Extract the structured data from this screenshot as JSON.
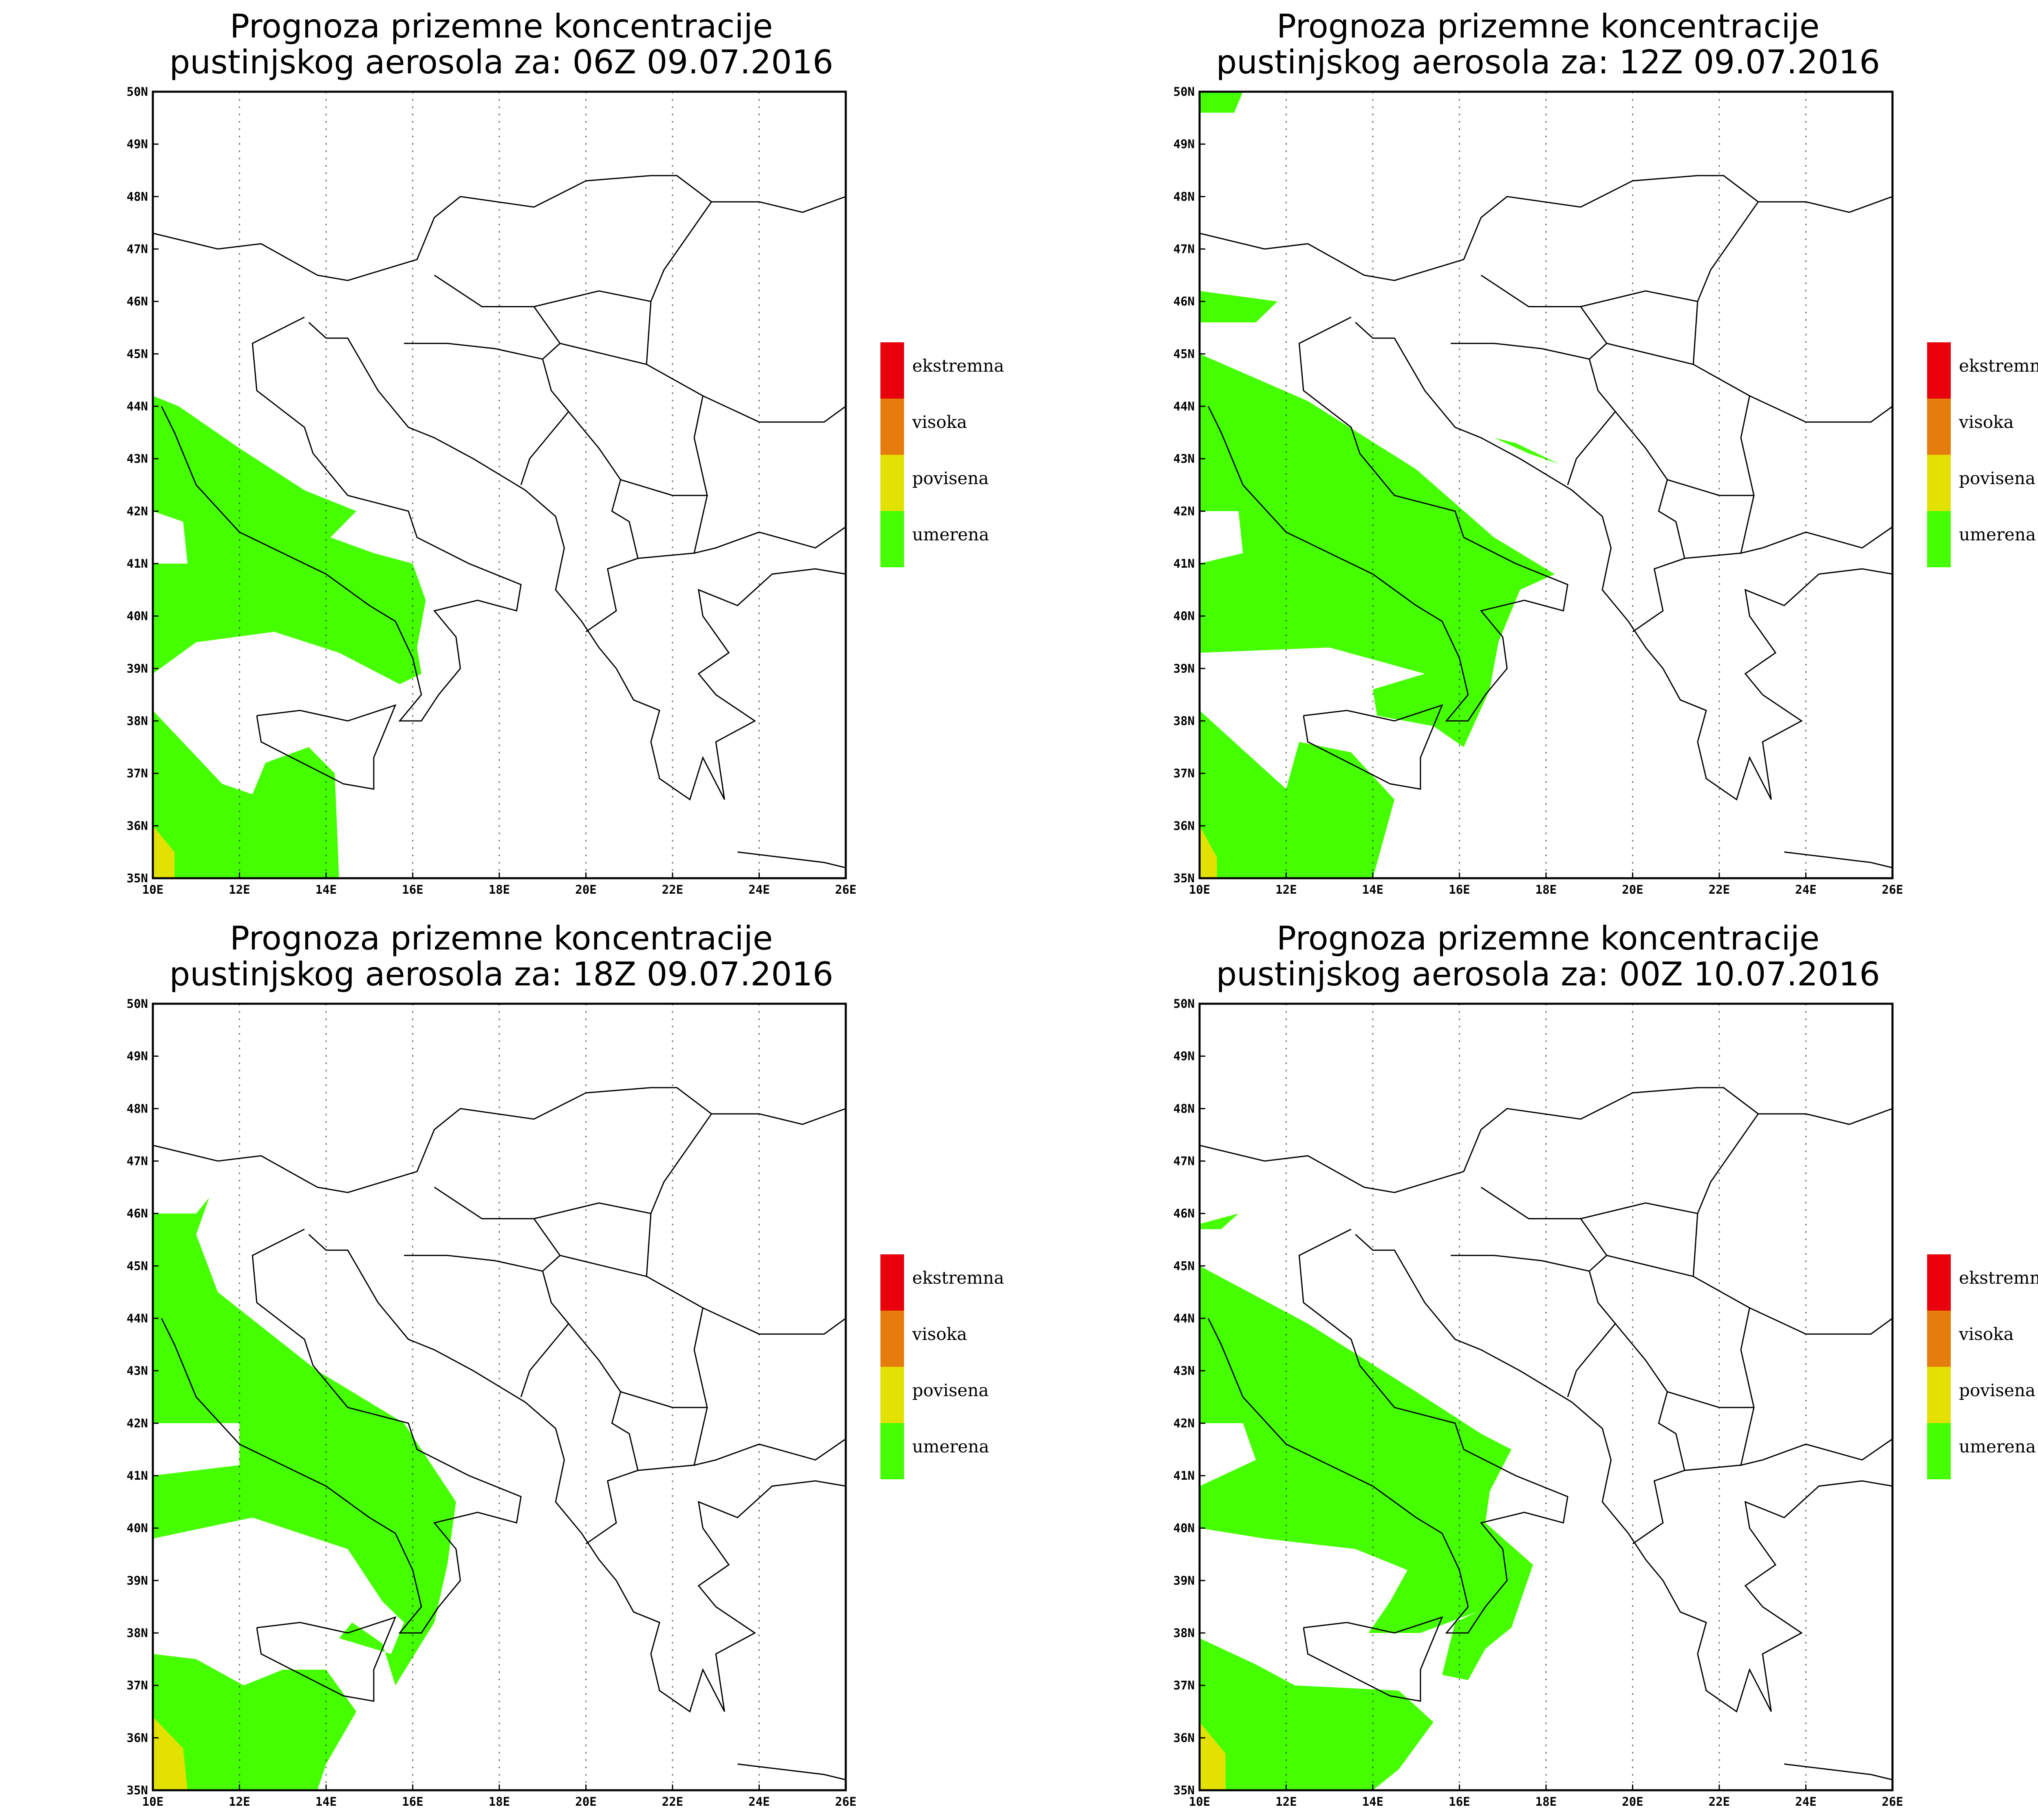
{
  "panels": [
    {
      "title_line1": "Prognoza prizemne koncentracije",
      "title_line2": "pustinjskog aerosola za: 06Z 09.07.2016",
      "forecast_time": "06Z 09.07.2016"
    },
    {
      "title_line1": "Prognoza prizemne koncentracije",
      "title_line2": "pustinjskog aerosola za: 12Z 09.07.2016",
      "forecast_time": "12Z 09.07.2016"
    },
    {
      "title_line1": "Prognoza prizemne koncentracije",
      "title_line2": "pustinjskog aerosola za: 18Z 09.07.2016",
      "forecast_time": "18Z 09.07.2016"
    },
    {
      "title_line1": "Prognoza prizemne koncentracije",
      "title_line2": "pustinjskog aerosola za: 00Z 10.07.2016",
      "forecast_time": "00Z 10.07.2016"
    }
  ],
  "axes": {
    "lon_ticks": [
      "10E",
      "12E",
      "14E",
      "16E",
      "18E",
      "20E",
      "22E",
      "24E",
      "26E"
    ],
    "lat_ticks": [
      "35N",
      "36N",
      "37N",
      "38N",
      "39N",
      "40N",
      "41N",
      "42N",
      "43N",
      "44N",
      "45N",
      "46N",
      "47N",
      "48N",
      "49N",
      "50N"
    ],
    "lon_range": [
      10,
      26
    ],
    "lat_range": [
      35,
      50
    ]
  },
  "legend": [
    {
      "label": "ekstremna",
      "color": "#e8000b"
    },
    {
      "label": "visoka",
      "color": "#e57c0c"
    },
    {
      "label": "povisena",
      "color": "#e3e102"
    },
    {
      "label": "umerena",
      "color": "#45ff00"
    }
  ],
  "colors": {
    "umerena": "#45ff00",
    "povisena": "#e3e102"
  }
}
